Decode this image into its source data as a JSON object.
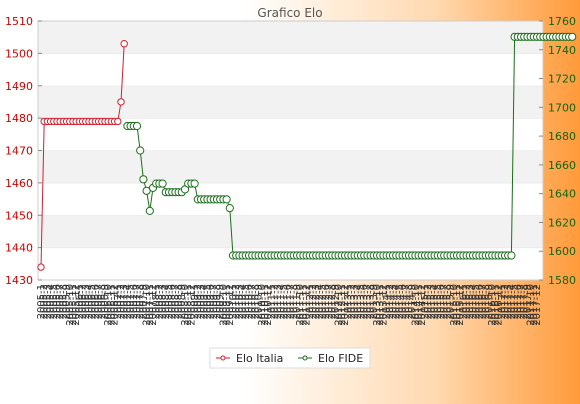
{
  "chart_data": {
    "type": "line",
    "title": "Grafico Elo",
    "y_left": {
      "lim": [
        1430,
        1510
      ],
      "ticks": [
        1430,
        1440,
        1450,
        1460,
        1470,
        1480,
        1490,
        1500,
        1510
      ]
    },
    "y_right": {
      "lim": [
        1580,
        1760
      ],
      "ticks": [
        1580,
        1600,
        1620,
        1640,
        1660,
        1680,
        1700,
        1720,
        1740,
        1760
      ]
    },
    "grid": "horizontal bands",
    "legend_position": "bottom-center",
    "x_labels": [
      "2005-1",
      "2005-2",
      "2005-3",
      "2005-4",
      "2005-5",
      "2005-6",
      "2005-7",
      "2005-8",
      "2005-9",
      "2005-10",
      "2005-11",
      "2005-12",
      "2006-1",
      "2006-2",
      "2006-3",
      "2006-4",
      "2006-5",
      "2006-6",
      "2006-7",
      "2006-8",
      "2006-9",
      "2006-10",
      "2006-11",
      "2006-12",
      "2007-1",
      "2007-2",
      "2007-3",
      "2007-4",
      "2007-5",
      "2007-6",
      "2007-7",
      "2007-8",
      "2007-9",
      "2007-10",
      "2007-11",
      "2007-12",
      "2008-1",
      "2008-2",
      "2008-3",
      "2008-4",
      "2008-5",
      "2008-6",
      "2008-7",
      "2008-8",
      "2008-9",
      "2008-10",
      "2008-11",
      "2008-12",
      "2009-1",
      "2009-2",
      "2009-3",
      "2009-4",
      "2009-5",
      "2009-6",
      "2009-7",
      "2009-8",
      "2009-9",
      "2009-10",
      "2009-11",
      "2009-12",
      "2010-1",
      "2010-2",
      "2010-3",
      "2010-4",
      "2010-5",
      "2010-6",
      "2010-7",
      "2010-8",
      "2010-9",
      "2010-10",
      "2010-11",
      "2010-12",
      "2011-1",
      "2011-2",
      "2011-3",
      "2011-4",
      "2011-5",
      "2011-6",
      "2011-7",
      "2011-8",
      "2011-9",
      "2011-10",
      "2011-11",
      "2011-12",
      "2012-1",
      "2012-2",
      "2012-3",
      "2012-4",
      "2012-5",
      "2012-6",
      "2012-7",
      "2012-8",
      "2012-9",
      "2012-10",
      "2012-11",
      "2012-12",
      "2013-1",
      "2013-2",
      "2013-3",
      "2013-4",
      "2013-5",
      "2013-6",
      "2013-7",
      "2013-8",
      "2013-9",
      "2013-10",
      "2013-11",
      "2013-12",
      "2014-1",
      "2014-2",
      "2014-3",
      "2014-4",
      "2014-5",
      "2014-6",
      "2014-7",
      "2014-8",
      "2014-9",
      "2014-10",
      "2014-11",
      "2014-12",
      "2015-1",
      "2015-2",
      "2015-3",
      "2015-4",
      "2015-5",
      "2015-6",
      "2015-7",
      "2015-8",
      "2015-9",
      "2015-10",
      "2015-11",
      "2015-12",
      "2016-1",
      "2016-2",
      "2016-3",
      "2016-4",
      "2016-5",
      "2016-6",
      "2016-7",
      "2016-8",
      "2016-9",
      "2016-10",
      "2016-11",
      "2016-12",
      "2017-1",
      "2017-2",
      "2017-3",
      "2017-4",
      "2017-5",
      "2017-6",
      "2017-7",
      "2017-8",
      "2017-9",
      "2017-10",
      "2017-11",
      "2017-12"
    ],
    "series": [
      {
        "name": "Elo Italia",
        "axis": "left",
        "color": "#d61e2e",
        "values": [
          1434,
          1479,
          1479,
          1479,
          1479,
          1479,
          1479,
          1479,
          1479,
          1479,
          1479,
          1479,
          1479,
          1479,
          1479,
          1479,
          1479,
          1479,
          1479,
          1479,
          1479,
          1479,
          1479,
          1479,
          1479,
          1485,
          1503
        ]
      },
      {
        "name": "Elo FIDE",
        "axis": "right",
        "color": "#1a6e1a",
        "start_index": 27,
        "values": [
          1687,
          1687,
          1687,
          1687,
          1670,
          1650,
          1642,
          1628,
          1644,
          1647,
          1647,
          1647,
          1641,
          1641,
          1641,
          1641,
          1641,
          1641,
          1643,
          1647,
          1647,
          1647,
          1636,
          1636,
          1636,
          1636,
          1636,
          1636,
          1636,
          1636,
          1636,
          1636,
          1630,
          1597,
          1597,
          1597,
          1597,
          1597,
          1597,
          1597,
          1597,
          1597,
          1597,
          1597,
          1597,
          1597,
          1597,
          1597,
          1597,
          1597,
          1597,
          1597,
          1597,
          1597,
          1597,
          1597,
          1597,
          1597,
          1597,
          1597,
          1597,
          1597,
          1597,
          1597,
          1597,
          1597,
          1597,
          1597,
          1597,
          1597,
          1597,
          1597,
          1597,
          1597,
          1597,
          1597,
          1597,
          1597,
          1597,
          1597,
          1597,
          1597,
          1597,
          1597,
          1597,
          1597,
          1597,
          1597,
          1597,
          1597,
          1597,
          1597,
          1597,
          1597,
          1597,
          1597,
          1597,
          1597,
          1597,
          1597,
          1597,
          1597,
          1597,
          1597,
          1597,
          1597,
          1597,
          1597,
          1597,
          1597,
          1597,
          1597,
          1597,
          1597,
          1597,
          1597,
          1597,
          1597,
          1597,
          1597,
          1597,
          1749,
          1749,
          1749,
          1749,
          1749,
          1749,
          1749,
          1749,
          1749,
          1749,
          1749,
          1749,
          1749,
          1749,
          1749,
          1749,
          1749,
          1749,
          1749
        ]
      }
    ]
  }
}
